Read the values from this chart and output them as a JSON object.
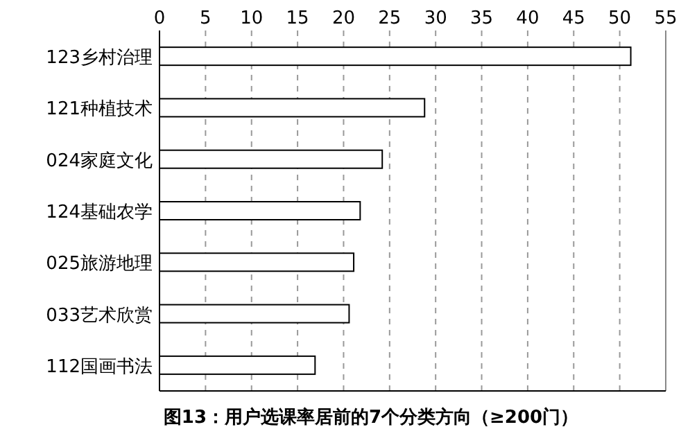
{
  "chart_data": {
    "type": "bar",
    "orientation": "horizontal",
    "title": "图13：用户选课率居前的7个分类方向（≥200门）",
    "categories": [
      "123乡村治理",
      "121种植技术",
      "024家庭文化",
      "124基础农学",
      "025旅游地理",
      "033艺术欣赏",
      "112国画书法"
    ],
    "values": [
      51.2,
      28.8,
      24.2,
      21.8,
      21.1,
      20.6,
      16.9
    ],
    "color": "#ffffff",
    "xlim": [
      0,
      55
    ],
    "xticks": [
      0,
      5,
      10,
      15,
      20,
      25,
      30,
      35,
      40,
      45,
      50,
      55
    ],
    "grid": "x"
  }
}
